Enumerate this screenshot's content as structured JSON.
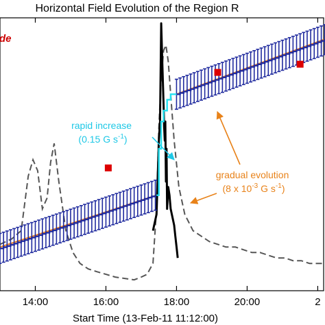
{
  "chart_data": {
    "type": "line",
    "title": "Horizontal Field Evolution of the Region R",
    "xlabel": "Start Time (13-Feb-11 11:12:00)",
    "ylabel": "",
    "panel_label": "de",
    "x_ticks": [
      "14:00",
      "16:00",
      "18:00",
      "20:00",
      "2"
    ],
    "xlim": [
      "13:00",
      "22:10"
    ],
    "ylim": [
      0,
      100
    ],
    "colors": {
      "horizontal_field": "#1f2a9e",
      "fit": "#f0831e",
      "rapid": "#23e0f0",
      "flare": "#000000",
      "dashed": "#555555",
      "marker": "#dd0000",
      "rapid_text": "#1ec8e6",
      "gradual_text": "#e88219",
      "panel_text": "#cc0000"
    },
    "series": [
      {
        "style": "errorbar-step",
        "color": "#1f2a9e",
        "segments": [
          {
            "x_start": "13:00",
            "x_end": "17:24",
            "y_start": 15.5,
            "y_end": 35.0,
            "error": 5.5,
            "step_min": 6
          },
          {
            "x_start": "18:00",
            "x_end": "22:10",
            "y_start": 72.0,
            "y_end": 92.0,
            "error": 5.5,
            "step_min": 6
          }
        ]
      },
      {
        "style": "line",
        "color": "#f0831e",
        "segments": [
          {
            "x": [
              "13:00",
              "17:26"
            ],
            "y": [
              16.0,
              35.0
            ]
          },
          {
            "x": [
              "18:00",
              "22:10"
            ],
            "y": [
              72.0,
              92.0
            ]
          }
        ]
      },
      {
        "style": "step",
        "color": "#23e0f0",
        "x": [
          "17:26",
          "17:30",
          "17:30",
          "17:34",
          "17:34",
          "17:38",
          "17:38",
          "17:44",
          "17:44",
          "17:50",
          "17:50",
          "18:00"
        ],
        "y": [
          35.0,
          35.0,
          52.0,
          52.0,
          62.0,
          62.0,
          66.0,
          66.0,
          70.0,
          70.0,
          72.0,
          72.0
        ]
      },
      {
        "style": "line",
        "color": "#000000",
        "x": [
          "17:20",
          "17:26",
          "17:30",
          "17:32",
          "17:34",
          "17:36",
          "17:38",
          "17:39",
          "17:40",
          "17:41",
          "17:42",
          "17:43",
          "17:44",
          "17:46",
          "17:48",
          "17:50",
          "17:52",
          "17:54",
          "17:56",
          "17:58",
          "18:00",
          "18:02"
        ],
        "y": [
          22.0,
          28.0,
          55.0,
          62.0,
          98.0,
          82.0,
          68.0,
          60.0,
          55.0,
          62.0,
          40.0,
          52.0,
          30.0,
          38.0,
          35.0,
          30.0,
          28.0,
          26.0,
          24.0,
          20.0,
          16.0,
          12.0
        ]
      },
      {
        "style": "dashed",
        "color": "#555555",
        "x": [
          "13:00",
          "13:20",
          "13:36",
          "13:48",
          "13:56",
          "14:04",
          "14:12",
          "14:20",
          "14:26",
          "14:32",
          "14:40",
          "14:52",
          "15:04",
          "15:16",
          "15:30",
          "15:44",
          "16:00",
          "16:16",
          "16:32",
          "16:48",
          "17:00",
          "17:10",
          "17:20",
          "17:26",
          "17:30",
          "17:34",
          "17:38",
          "17:42",
          "17:46",
          "17:50",
          "17:56",
          "18:04",
          "18:14",
          "18:28",
          "18:42",
          "18:56",
          "19:10",
          "19:24",
          "19:40",
          "19:54",
          "20:08",
          "20:22",
          "20:36",
          "20:50",
          "21:04",
          "21:18",
          "21:32",
          "21:46",
          "22:00",
          "22:10"
        ],
        "y": [
          17.0,
          19.0,
          22.0,
          42.0,
          48.0,
          44.0,
          30.0,
          34.0,
          47.0,
          54.0,
          40.0,
          22.0,
          14.0,
          10.0,
          8.0,
          7.0,
          6.0,
          5.0,
          4.5,
          4.0,
          5.0,
          6.0,
          10.0,
          30.0,
          60.0,
          78.0,
          88.0,
          90.0,
          84.0,
          72.0,
          55.0,
          38.0,
          28.0,
          22.0,
          20.0,
          18.0,
          17.0,
          16.0,
          16.0,
          15.0,
          14.0,
          14.0,
          13.0,
          12.0,
          12.0,
          11.0,
          11.0,
          10.0,
          10.0,
          10.0
        ]
      },
      {
        "style": "scatter",
        "color": "#dd0000",
        "x": [
          "16:04",
          "19:10",
          "21:30"
        ],
        "y": [
          45.0,
          80.0,
          83.0
        ]
      }
    ],
    "annotations": [
      {
        "lines": [
          "rapid increase",
          "(0.15 G s",
          "-1",
          ")"
        ],
        "color": "#1ec8e6"
      },
      {
        "lines": [
          "gradual evolution",
          "(8 x 10",
          "-3",
          " G s",
          "-1",
          ")"
        ],
        "color": "#e88219"
      }
    ]
  }
}
